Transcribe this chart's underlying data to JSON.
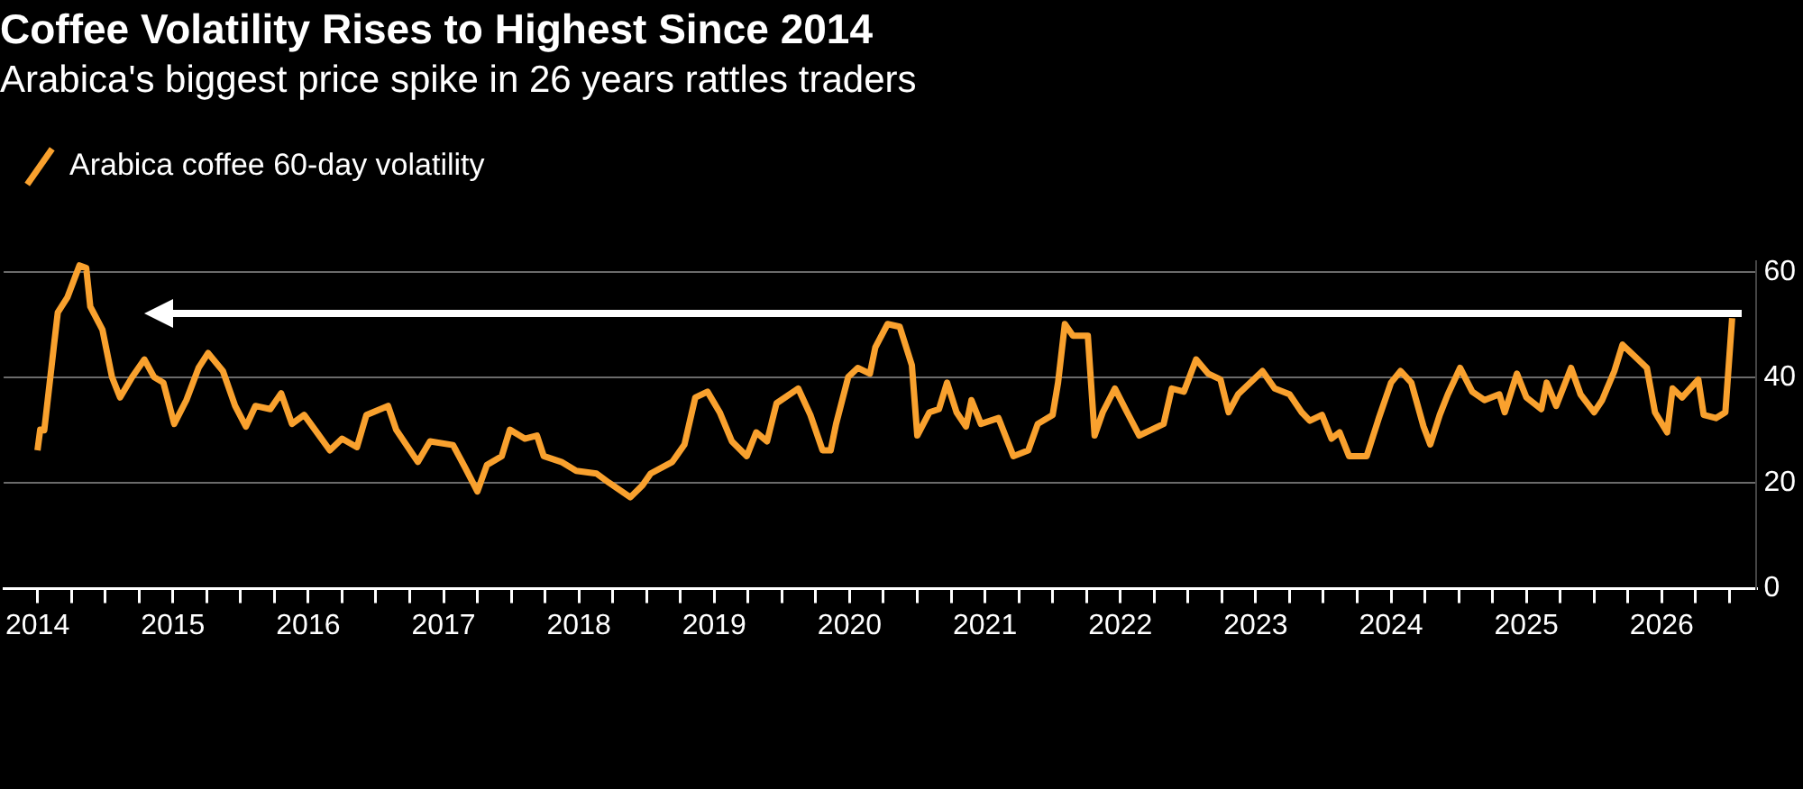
{
  "chart_data": {
    "type": "line",
    "title": "Coffee Volatility Rises to Highest Since 2014",
    "subtitle": "Arabica's biggest price spike in 26 years rattles traders",
    "series": [
      {
        "name": "Arabica coffee 60-day volatility",
        "color": "#f9a12e",
        "x": [
          2014.0,
          2014.02,
          2014.05,
          2014.12,
          2014.15,
          2014.22,
          2014.31,
          2014.36,
          2014.39,
          2014.48,
          2014.55,
          2014.61,
          2014.7,
          2014.79,
          2014.86,
          2014.93,
          2015.01,
          2015.1,
          2015.19,
          2015.26,
          2015.37,
          2015.46,
          2015.54,
          2015.61,
          2015.72,
          2015.8,
          2015.88,
          2015.97,
          2016.05,
          2016.16,
          2016.25,
          2016.36,
          2016.43,
          2016.59,
          2016.65,
          2016.81,
          2016.9,
          2017.07,
          2017.16,
          2017.25,
          2017.32,
          2017.43,
          2017.49,
          2017.6,
          2017.69,
          2017.74,
          2017.87,
          2017.98,
          2018.13,
          2018.22,
          2018.38,
          2018.47,
          2018.53,
          2018.69,
          2018.78,
          2018.86,
          2018.95,
          2019.04,
          2019.13,
          2019.24,
          2019.31,
          2019.39,
          2019.46,
          2019.62,
          2019.71,
          2019.8,
          2019.86,
          2019.9,
          2019.99,
          2020.06,
          2020.15,
          2020.19,
          2020.28,
          2020.37,
          2020.46,
          2020.5,
          2020.59,
          2020.66,
          2020.72,
          2020.79,
          2020.86,
          2020.9,
          2020.97,
          2021.1,
          2021.21,
          2021.32,
          2021.39,
          2021.5,
          2021.54,
          2021.59,
          2021.65,
          2021.76,
          2021.81,
          2021.87,
          2021.96,
          2022.05,
          2022.14,
          2022.32,
          2022.38,
          2022.47,
          2022.56,
          2022.65,
          2022.74,
          2022.8,
          2022.87,
          2023.05,
          2023.14,
          2023.25,
          2023.34,
          2023.4,
          2023.49,
          2023.56,
          2023.62,
          2023.69,
          2023.82,
          2023.91,
          2024.0,
          2024.07,
          2024.15,
          2024.24,
          2024.29,
          2024.36,
          2024.42,
          2024.51,
          2024.6,
          2024.69,
          2024.8,
          2024.84,
          2024.93,
          2025.0,
          2025.11,
          2025.15,
          2025.22,
          2025.33,
          2025.4,
          2025.5,
          2025.56,
          2025.65,
          2025.71,
          2025.8,
          2025.89,
          2025.95,
          2026.04,
          2026.08,
          2026.15,
          2026.27,
          2026.31,
          2026.4,
          2026.47,
          2026.52
        ],
        "values": [
          26.2,
          30.1,
          30,
          45.7,
          52.3,
          55.1,
          61.2,
          60.7,
          53.4,
          49,
          40.1,
          36.2,
          40.1,
          43.4,
          40.1,
          39,
          31.2,
          35.7,
          41.8,
          44.6,
          41.2,
          34.6,
          30.7,
          34.6,
          34,
          37,
          31.2,
          32.9,
          30.1,
          26.2,
          28.4,
          26.8,
          32.9,
          34.6,
          30.1,
          24,
          27.9,
          27.2,
          22.9,
          18.4,
          23.4,
          25.1,
          30.1,
          28.4,
          29,
          25.1,
          24,
          22.3,
          21.8,
          20.1,
          17.3,
          19.6,
          21.8,
          24,
          27.3,
          36.2,
          37.3,
          33.4,
          27.9,
          25.1,
          29.6,
          27.9,
          35.1,
          37.9,
          32.9,
          26.2,
          26.2,
          31.2,
          40.1,
          41.8,
          40.7,
          45.7,
          50.1,
          49.6,
          42.3,
          29,
          33.4,
          34,
          39,
          33.4,
          30.7,
          35.7,
          31.2,
          32.3,
          25.1,
          26.2,
          31.2,
          32.9,
          39,
          50.1,
          47.9,
          47.9,
          29,
          33.4,
          37.9,
          33.4,
          29,
          31.2,
          37.9,
          37.3,
          43.4,
          40.7,
          39.6,
          33.4,
          36.8,
          41.2,
          37.9,
          36.8,
          33.4,
          31.8,
          32.9,
          28.4,
          29.6,
          25.1,
          25.1,
          32.3,
          39,
          41.2,
          39,
          30.7,
          27.3,
          32.9,
          36.8,
          41.8,
          37.3,
          35.7,
          36.8,
          33.4,
          40.7,
          36.2,
          34,
          39,
          34.6,
          41.8,
          36.8,
          33.4,
          35.7,
          41.2,
          46.2,
          44,
          41.8,
          33.4,
          29.6,
          37.9,
          36.2,
          39.6,
          32.9,
          32.3,
          33.4,
          51.2
        ]
      }
    ],
    "xlim": [
      2013.75,
      2026.7
    ],
    "xticks": [
      2014,
      {
        "value": 2014.25,
        "label": null
      },
      {
        "value": 2014.5,
        "label": null
      },
      {
        "value": 2014.75,
        "label": null
      },
      2015,
      {
        "value": 2015.25,
        "label": null
      },
      {
        "value": 2015.5,
        "label": null
      },
      {
        "value": 2015.75,
        "label": null
      },
      2016,
      {
        "value": 2016.25,
        "label": null
      },
      {
        "value": 2016.5,
        "label": null
      },
      {
        "value": 2016.75,
        "label": null
      },
      2017,
      {
        "value": 2017.25,
        "label": null
      },
      {
        "value": 2017.5,
        "label": null
      },
      {
        "value": 2017.75,
        "label": null
      },
      2018,
      {
        "value": 2018.25,
        "label": null
      },
      {
        "value": 2018.5,
        "label": null
      },
      {
        "value": 2018.75,
        "label": null
      },
      2019,
      {
        "value": 2019.25,
        "label": null
      },
      {
        "value": 2019.5,
        "label": null
      },
      {
        "value": 2019.75,
        "label": null
      },
      2020,
      {
        "value": 2020.25,
        "label": null
      },
      {
        "value": 2020.5,
        "label": null
      },
      {
        "value": 2020.75,
        "label": null
      },
      2021,
      {
        "value": 2021.25,
        "label": null
      },
      {
        "value": 2021.5,
        "label": null
      },
      {
        "value": 2021.75,
        "label": null
      },
      2022,
      {
        "value": 2022.25,
        "label": null
      },
      {
        "value": 2022.5,
        "label": null
      },
      {
        "value": 2022.75,
        "label": null
      },
      2023,
      {
        "value": 2023.25,
        "label": null
      },
      {
        "value": 2023.5,
        "label": null
      },
      {
        "value": 2023.75,
        "label": null
      },
      2024,
      {
        "value": 2024.25,
        "label": null
      },
      {
        "value": 2024.5,
        "label": null
      },
      {
        "value": 2024.75,
        "label": null
      },
      2025,
      {
        "value": 2025.25,
        "label": null
      },
      {
        "value": 2025.5,
        "label": null
      },
      {
        "value": 2025.75,
        "label": null
      },
      2026,
      {
        "value": 2026.25,
        "label": null
      },
      {
        "value": 2026.5,
        "label": null
      }
    ],
    "ylim": [
      0,
      62
    ],
    "yticks": [
      0,
      20,
      40,
      60
    ],
    "grid": "y",
    "legend": "top left",
    "marker": "none",
    "line_style": "solid"
  }
}
